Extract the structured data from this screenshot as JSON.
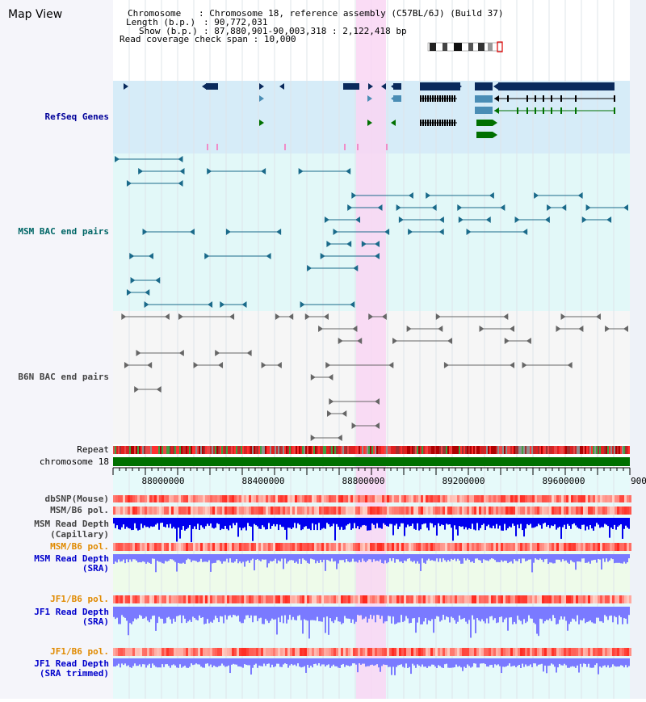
{
  "view": {
    "title": "Map View"
  },
  "info": {
    "chromosome_key": "Chromosome",
    "chromosome_value": "Chromosome 18, reference assembly (C57BL/6J) (Build 37)",
    "length_key": "Length (b.p.)",
    "length_value": "90,772,031",
    "show_key": "Show (b.p.)",
    "show_value": "87,880,901-90,003,318 : 2,122,418 bp",
    "coverage_key": "Read coverage check span",
    "coverage_value": "10,000"
  },
  "tracks": {
    "refseq": "RefSeq Genes",
    "msm_bac": "MSM BAC end pairs",
    "b6n_bac": "B6N BAC end pairs",
    "repeat": "Repeat",
    "chromosome": "chromosome 18",
    "dbsnp": "dbSNP(Mouse)",
    "msm_b6_pol": "MSM/B6 pol.",
    "msm_depth_cap_1": "MSM Read Depth",
    "msm_depth_cap_2": "(Capillary)",
    "msm_b6_pol_2": "MSM/B6 pol.",
    "msm_depth_sra_1": "MSM Read Depth",
    "msm_depth_sra_2": "(SRA)",
    "jf1_b6_pol": "JF1/B6 pol.",
    "jf1_depth_sra_1": "JF1 Read Depth",
    "jf1_depth_sra_2": "(SRA)",
    "jf1_b6_pol_2": "JF1/B6 pol.",
    "jf1_depth_trim_1": "JF1 Read Depth",
    "jf1_depth_trim_2": "(SRA trimmed)"
  },
  "ruler": {
    "ticks": [
      "88000000",
      "88400000",
      "88800000",
      "89200000",
      "89600000",
      "900"
    ]
  },
  "colors": {
    "highlight": "#f9d6f3",
    "refseq_bg": "#d6ecf8",
    "msm_bg": "#e2f8f8",
    "gene_dark": "#0a2a5c",
    "gene_mid": "#4a8db5",
    "gene_green": "#007000",
    "msm_pair": "#1a6a8a",
    "b6n_pair": "#666666",
    "chromosome_bar": "#007000",
    "depth_dark": "#0000ee",
    "depth_light": "#7a7aff"
  }
}
